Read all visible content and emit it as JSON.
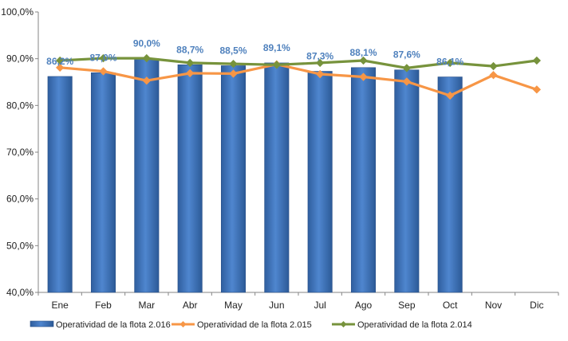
{
  "chart_data": {
    "type": "bar",
    "categories": [
      "Ene",
      "Feb",
      "Mar",
      "Abr",
      "May",
      "Jun",
      "Jul",
      "Ago",
      "Sep",
      "Oct",
      "Nov",
      "Dic"
    ],
    "ylim": [
      40,
      100
    ],
    "yticks": [
      "40,0%",
      "50,0%",
      "60,0%",
      "70,0%",
      "80,0%",
      "90,0%",
      "100,0%"
    ],
    "grid": false,
    "legend_position": "bottom",
    "series": [
      {
        "name": "Operatividad de la flota 2.016",
        "kind": "bar",
        "color": "#4A7EBB",
        "label_color": "#4F81BD",
        "values": [
          86.2,
          87.0,
          90.0,
          88.7,
          88.5,
          89.1,
          87.3,
          88.1,
          87.6,
          86.1,
          null,
          null
        ],
        "labels": [
          "86,2%",
          "87,0%",
          "90,0%",
          "88,7%",
          "88,5%",
          "89,1%",
          "87,3%",
          "88,1%",
          "87,6%",
          "86,1%",
          "",
          ""
        ]
      },
      {
        "name": "Operatividad de la flota 2.015",
        "kind": "line",
        "color": "#F79646",
        "values": [
          88.1,
          87.3,
          85.3,
          86.9,
          86.8,
          88.8,
          86.7,
          86.1,
          85.1,
          82.1,
          86.5,
          83.4
        ]
      },
      {
        "name": "Operatividad de la flota 2.014",
        "kind": "line",
        "color": "#77933C",
        "values": [
          89.6,
          90.1,
          90.1,
          89.1,
          88.9,
          88.7,
          89.1,
          89.6,
          88.0,
          89.1,
          88.4,
          89.6
        ]
      }
    ]
  }
}
